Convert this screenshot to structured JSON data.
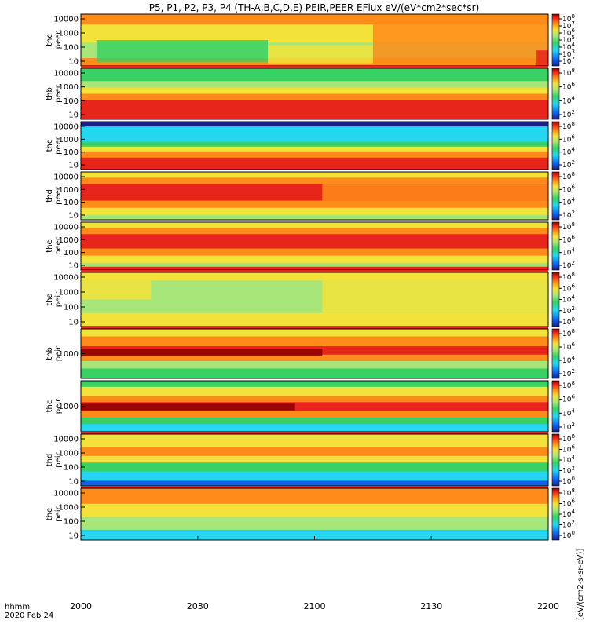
{
  "chart_data": {
    "type": "heatmap",
    "title": "P5, P1, P2, P3, P4 (TH-A,B,C,D,E) PEIR,PEER EFlux eV/(eV*cm2*sec*sr)",
    "x_axis": {
      "label": "hhmm",
      "date": "2020 Feb 24",
      "range": [
        0,
        120
      ],
      "ticks": [
        {
          "value": 0,
          "label": "2000"
        },
        {
          "value": 30,
          "label": "2030"
        },
        {
          "value": 60,
          "label": "2100"
        },
        {
          "value": 90,
          "label": "2130"
        },
        {
          "value": 120,
          "label": "2200"
        }
      ]
    },
    "colorbar_label": "[eV/(cm2-s-sr-eV)]",
    "colors": {
      "dark_red": "#8b0000",
      "red": "#e8251a",
      "orange": "#ff8c1a",
      "yellow": "#f2e23a",
      "light_green": "#a8e67a",
      "green": "#39d163",
      "cyan": "#25d6f0",
      "blue": "#1060e8",
      "navy": "#18208a",
      "black": "#000000"
    },
    "panels": [
      {
        "name": "thc-peer",
        "label": [
          "thc",
          "peer"
        ],
        "top_band": false,
        "yticks": [
          "10000",
          "1000",
          "100",
          "10"
        ],
        "cbar_ticks": [
          "10^8",
          "10^7",
          "10^6",
          "10^5",
          "10^4",
          "10^3",
          "10^2"
        ],
        "bands": [
          {
            "y0": 0.0,
            "y1": 0.2,
            "color": "orange"
          },
          {
            "y0": 0.2,
            "y1": 0.55,
            "color": "yellow"
          },
          {
            "y0": 0.55,
            "y1": 0.85,
            "color": "light_green"
          },
          {
            "y0": 0.85,
            "y1": 1.0,
            "color": "orange"
          }
        ],
        "blobs": [
          {
            "t0": 4,
            "t1": 48,
            "y0": 0.5,
            "y1": 0.92,
            "color": "green"
          },
          {
            "t0": 48,
            "t1": 75,
            "y0": 0.6,
            "y1": 0.95,
            "color": "yellow"
          },
          {
            "t0": 75,
            "t1": 120,
            "y0": 0.0,
            "y1": 1.0,
            "color": "orange"
          },
          {
            "t0": 117,
            "t1": 120,
            "y0": 0.7,
            "y1": 1.0,
            "color": "red"
          }
        ]
      },
      {
        "name": "thb-peer",
        "label": [
          "thb",
          "peer"
        ],
        "top_band": true,
        "yticks": [
          "10000",
          "1000",
          "100",
          "10"
        ],
        "cbar_ticks": [
          "10^8",
          "10^6",
          "10^4",
          "10^2"
        ],
        "bands": [
          {
            "y0": 0.0,
            "y1": 0.25,
            "color": "green"
          },
          {
            "y0": 0.25,
            "y1": 0.38,
            "color": "light_green"
          },
          {
            "y0": 0.38,
            "y1": 0.5,
            "color": "yellow"
          },
          {
            "y0": 0.5,
            "y1": 0.62,
            "color": "orange"
          },
          {
            "y0": 0.62,
            "y1": 1.0,
            "color": "red"
          }
        ],
        "blobs": []
      },
      {
        "name": "thc-peer-2",
        "label": [
          "thc",
          "peer"
        ],
        "top_band": false,
        "yticks": [
          "10000",
          "1000",
          "100",
          "10"
        ],
        "cbar_ticks": [
          "10^8",
          "10^6",
          "10^4",
          "10^2"
        ],
        "bands": [
          {
            "y0": 0.0,
            "y1": 0.1,
            "color": "navy"
          },
          {
            "y0": 0.1,
            "y1": 0.42,
            "color": "cyan"
          },
          {
            "y0": 0.42,
            "y1": 0.52,
            "color": "green"
          },
          {
            "y0": 0.52,
            "y1": 0.62,
            "color": "yellow"
          },
          {
            "y0": 0.62,
            "y1": 0.75,
            "color": "orange"
          },
          {
            "y0": 0.75,
            "y1": 1.0,
            "color": "red"
          }
        ],
        "blobs": []
      },
      {
        "name": "thd-peer",
        "label": [
          "thd",
          "peer"
        ],
        "top_band": false,
        "yticks": [
          "10000",
          "1000",
          "100",
          "10"
        ],
        "cbar_ticks": [
          "10^8",
          "10^6",
          "10^4",
          "10^2"
        ],
        "bands": [
          {
            "y0": 0.0,
            "y1": 0.12,
            "color": "yellow"
          },
          {
            "y0": 0.12,
            "y1": 0.25,
            "color": "orange"
          },
          {
            "y0": 0.25,
            "y1": 0.6,
            "color": "red"
          },
          {
            "y0": 0.6,
            "y1": 0.75,
            "color": "orange"
          },
          {
            "y0": 0.75,
            "y1": 0.9,
            "color": "yellow"
          },
          {
            "y0": 0.9,
            "y1": 1.0,
            "color": "light_green"
          }
        ],
        "blobs": [
          {
            "t0": 62,
            "t1": 120,
            "y0": 0.25,
            "y1": 0.6,
            "color": "orange"
          }
        ]
      },
      {
        "name": "the-peer",
        "label": [
          "the",
          "peer"
        ],
        "top_band": false,
        "yticks": [
          "10000",
          "1000",
          "100",
          "10"
        ],
        "cbar_ticks": [
          "10^8",
          "10^6",
          "10^4",
          "10^2"
        ],
        "bands": [
          {
            "y0": 0.0,
            "y1": 0.12,
            "color": "yellow"
          },
          {
            "y0": 0.12,
            "y1": 0.25,
            "color": "orange"
          },
          {
            "y0": 0.25,
            "y1": 0.55,
            "color": "red"
          },
          {
            "y0": 0.55,
            "y1": 0.7,
            "color": "orange"
          },
          {
            "y0": 0.7,
            "y1": 0.85,
            "color": "yellow"
          },
          {
            "y0": 0.85,
            "y1": 0.93,
            "color": "light_green"
          },
          {
            "y0": 0.93,
            "y1": 1.0,
            "color": "red"
          }
        ],
        "blobs": []
      },
      {
        "name": "tha-peir",
        "label": [
          "tha",
          "peir"
        ],
        "top_band": true,
        "yticks": [
          "10000",
          "1000",
          "100",
          "10"
        ],
        "cbar_ticks": [
          "10^8",
          "10^6",
          "10^4",
          "10^2",
          "10^0"
        ],
        "bands": [
          {
            "y0": 0.0,
            "y1": 0.15,
            "color": "yellow"
          },
          {
            "y0": 0.15,
            "y1": 0.75,
            "color": "light_green"
          },
          {
            "y0": 0.75,
            "y1": 1.0,
            "color": "yellow"
          }
        ],
        "blobs": [
          {
            "t0": 0,
            "t1": 18,
            "y0": 0.1,
            "y1": 0.5,
            "color": "yellow"
          },
          {
            "t0": 62,
            "t1": 120,
            "y0": 0.0,
            "y1": 0.75,
            "color": "yellow"
          }
        ]
      },
      {
        "name": "thb-peir",
        "label": [
          "thb",
          "peir"
        ],
        "top_band": true,
        "yticks": [
          "1000"
        ],
        "cbar_ticks": [
          "10^8",
          "10^6",
          "10^4",
          "10^2"
        ],
        "bands": [
          {
            "y0": 0.0,
            "y1": 0.15,
            "color": "yellow"
          },
          {
            "y0": 0.15,
            "y1": 0.35,
            "color": "orange"
          },
          {
            "y0": 0.35,
            "y1": 0.52,
            "color": "red"
          },
          {
            "y0": 0.52,
            "y1": 0.65,
            "color": "orange"
          },
          {
            "y0": 0.65,
            "y1": 0.8,
            "color": "light_green"
          },
          {
            "y0": 0.8,
            "y1": 1.0,
            "color": "green"
          }
        ],
        "blobs": [
          {
            "t0": 0,
            "t1": 62,
            "y0": 0.4,
            "y1": 0.55,
            "color": "dark_red"
          }
        ]
      },
      {
        "name": "thc-peir",
        "label": [
          "thc",
          "peir"
        ],
        "top_band": false,
        "yticks": [
          "1000"
        ],
        "cbar_ticks": [
          "10^8",
          "10^6",
          "10^4",
          "10^2"
        ],
        "bands": [
          {
            "y0": 0.0,
            "y1": 0.12,
            "color": "green"
          },
          {
            "y0": 0.12,
            "y1": 0.3,
            "color": "yellow"
          },
          {
            "y0": 0.3,
            "y1": 0.42,
            "color": "orange"
          },
          {
            "y0": 0.42,
            "y1": 0.6,
            "color": "red"
          },
          {
            "y0": 0.6,
            "y1": 0.72,
            "color": "orange"
          },
          {
            "y0": 0.72,
            "y1": 0.85,
            "color": "green"
          },
          {
            "y0": 0.85,
            "y1": 1.0,
            "color": "cyan"
          }
        ],
        "blobs": [
          {
            "t0": 0,
            "t1": 55,
            "y0": 0.45,
            "y1": 0.58,
            "color": "dark_red"
          }
        ]
      },
      {
        "name": "thd-peir",
        "label": [
          "thd",
          "peir"
        ],
        "top_band": true,
        "yticks": [
          "10000",
          "1000",
          "100",
          "10"
        ],
        "cbar_ticks": [
          "10^8",
          "10^6",
          "10^4",
          "10^2",
          "10^0"
        ],
        "bands": [
          {
            "y0": 0.0,
            "y1": 0.25,
            "color": "yellow"
          },
          {
            "y0": 0.25,
            "y1": 0.42,
            "color": "orange"
          },
          {
            "y0": 0.42,
            "y1": 0.55,
            "color": "yellow"
          },
          {
            "y0": 0.55,
            "y1": 0.72,
            "color": "green"
          },
          {
            "y0": 0.72,
            "y1": 0.9,
            "color": "cyan"
          },
          {
            "y0": 0.9,
            "y1": 1.0,
            "color": "blue"
          }
        ],
        "blobs": []
      },
      {
        "name": "the-peir",
        "label": [
          "the",
          "peir"
        ],
        "top_band": true,
        "yticks": [
          "10000",
          "1000",
          "100",
          "10"
        ],
        "cbar_ticks": [
          "10^8",
          "10^6",
          "10^4",
          "10^2",
          "10^0"
        ],
        "bands": [
          {
            "y0": 0.0,
            "y1": 0.3,
            "color": "orange"
          },
          {
            "y0": 0.3,
            "y1": 0.55,
            "color": "yellow"
          },
          {
            "y0": 0.55,
            "y1": 0.8,
            "color": "light_green"
          },
          {
            "y0": 0.8,
            "y1": 1.0,
            "color": "cyan"
          }
        ],
        "blobs": []
      }
    ]
  }
}
